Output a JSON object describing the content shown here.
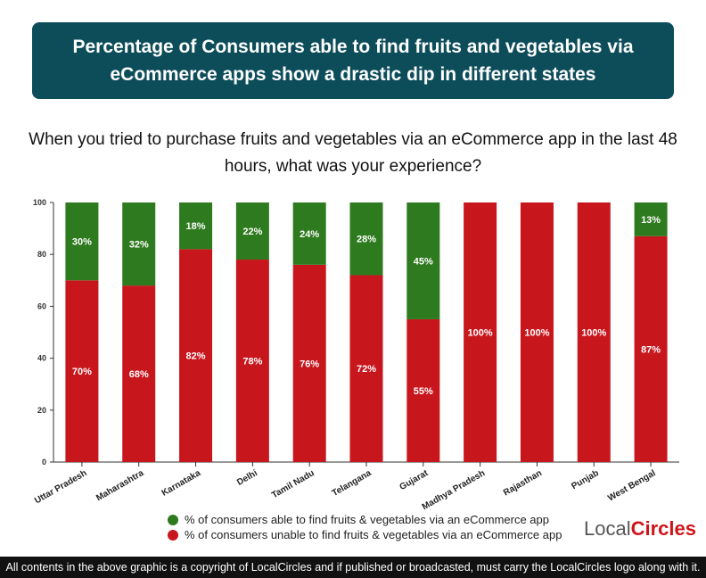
{
  "header": {
    "title": "Percentage of Consumers able to find fruits and vegetables via eCommerce apps show a drastic dip in different states",
    "question": "When you tried to purchase fruits and vegetables via an eCommerce app in the last 48 hours, what was your experience?"
  },
  "chart_data": {
    "type": "bar",
    "stacked": true,
    "categories": [
      "Uttar Pradesh",
      "Maharashtra",
      "Karnataka",
      "Delhi",
      "Tamil Nadu",
      "Telangana",
      "Gujarat",
      "Madhya Pradesh",
      "Rajasthan",
      "Punjab",
      "West Bengal"
    ],
    "series": [
      {
        "name": "% of consumers unable to find fruits & vegetables via an eCommerce app",
        "color": "#c8161d",
        "values": [
          70,
          68,
          82,
          78,
          76,
          72,
          55,
          100,
          100,
          100,
          87
        ]
      },
      {
        "name": "% of consumers able to find fruits & vegetables via an eCommerce app",
        "color": "#2e7a1e",
        "values": [
          30,
          32,
          18,
          22,
          24,
          28,
          45,
          0,
          0,
          0,
          13
        ]
      }
    ],
    "ylim": [
      0,
      100
    ],
    "yticks": [
      0,
      20,
      40,
      60,
      80,
      100
    ],
    "grid": false,
    "legend": "bottom"
  },
  "logo": {
    "text_a": "Local",
    "text_b": "Circles"
  },
  "footer": "All contents in the above graphic is a copyright of LocalCircles and if published or broadcasted, must carry the LocalCircles logo along with it."
}
